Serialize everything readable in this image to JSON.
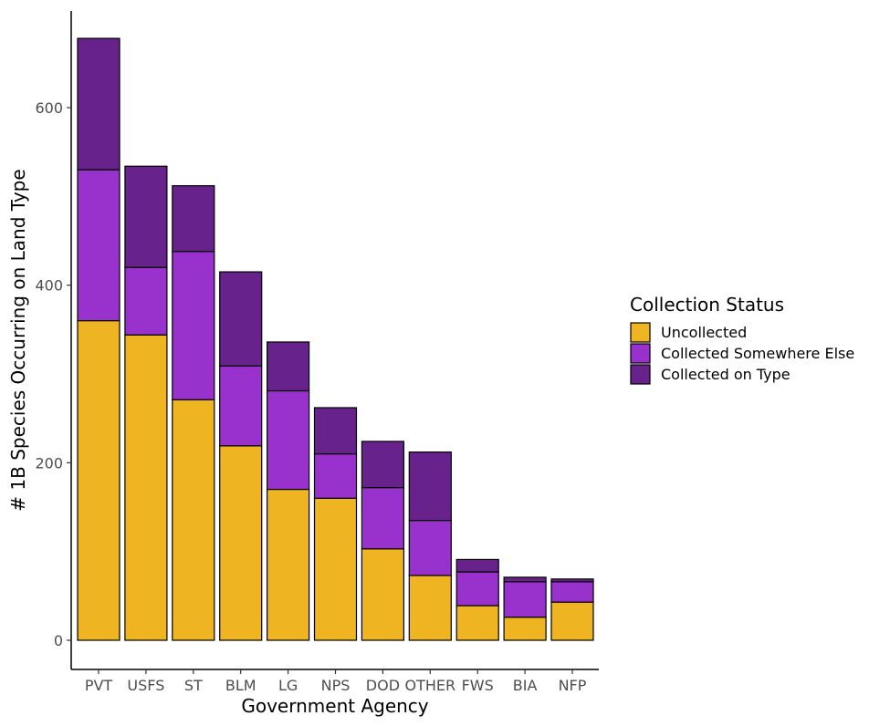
{
  "chart_data": {
    "type": "bar",
    "stacked": true,
    "xlabel": "Government Agency",
    "ylabel": "# 1B Species Occurring on Land Type",
    "ylim": [
      0,
      700
    ],
    "yticks": [
      0,
      200,
      400,
      600
    ],
    "categories": [
      "PVT",
      "USFS",
      "ST",
      "BLM",
      "LG",
      "NPS",
      "DOD",
      "OTHER",
      "FWS",
      "BIA",
      "NFP"
    ],
    "series": [
      {
        "name": "Uncollected",
        "color": "#EEB422",
        "values": [
          360,
          344,
          271,
          219,
          170,
          160,
          103,
          73,
          39,
          26,
          43
        ]
      },
      {
        "name": "Collected Somewhere Else",
        "color": "#9932CC",
        "values": [
          170,
          76,
          167,
          90,
          111,
          50,
          69,
          62,
          38,
          40,
          23
        ]
      },
      {
        "name": "Collected on Type",
        "color": "#68228B",
        "values": [
          148,
          114,
          74,
          106,
          55,
          52,
          52,
          77,
          14,
          5,
          3
        ]
      }
    ],
    "legend": {
      "title": "Collection Status",
      "position": "right"
    },
    "grid": false
  }
}
